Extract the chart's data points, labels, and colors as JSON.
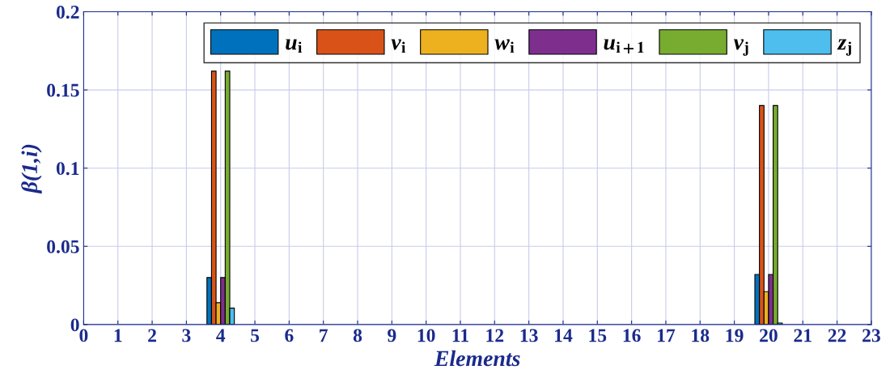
{
  "chart_data": {
    "type": "bar",
    "xlabel": "Elements",
    "ylabel": "β(1,i)",
    "x": [
      4,
      20
    ],
    "series": [
      {
        "name": "u$_{i}$",
        "color": "#0072bd",
        "values": [
          0.03,
          0.032
        ]
      },
      {
        "name": "v$_{i}$",
        "color": "#d95319",
        "values": [
          0.162,
          0.14
        ]
      },
      {
        "name": "w$_{i}$",
        "color": "#edb120",
        "values": [
          0.014,
          0.021
        ]
      },
      {
        "name": "u$_{i+1}$",
        "color": "#7e2f8e",
        "values": [
          0.03,
          0.032
        ]
      },
      {
        "name": "v$_{j}$",
        "color": "#77ac30",
        "values": [
          0.162,
          0.14
        ]
      },
      {
        "name": "z$_{j}$",
        "color": "#4dbeee",
        "values": [
          0.0105,
          0.001
        ]
      }
    ],
    "xlim": [
      0,
      23
    ],
    "xticks": [
      0,
      1,
      2,
      3,
      4,
      5,
      6,
      7,
      8,
      9,
      10,
      11,
      12,
      13,
      14,
      15,
      16,
      17,
      18,
      19,
      20,
      21,
      22,
      23
    ],
    "ylim": [
      0,
      0.2
    ],
    "yticks": [
      0,
      0.05,
      0.1,
      0.15,
      0.2
    ],
    "grid": true,
    "legend": "top right"
  }
}
